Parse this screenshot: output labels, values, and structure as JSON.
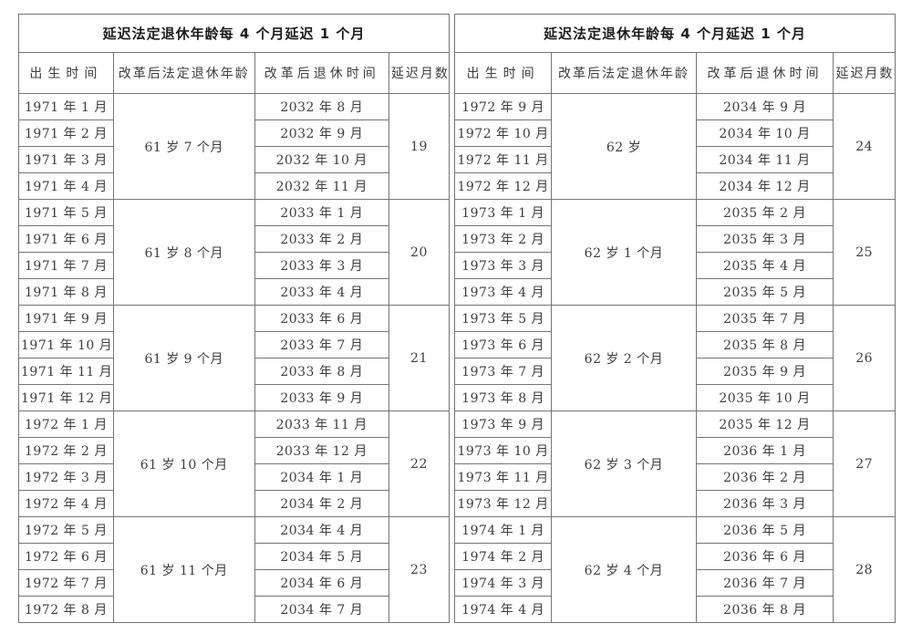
{
  "style": {
    "background": "#ffffff",
    "border_color": "#757575",
    "text_color": "#3d3d3d",
    "title_color": "#1c1c1c"
  },
  "tables": [
    {
      "title": "延迟法定退休年龄每 4 个月延迟 1 个月",
      "columns": [
        "出生时间",
        "改革后法定退休年龄",
        "改革后退休时间",
        "延迟月数"
      ],
      "groups": [
        {
          "age": "61 岁 7 个月",
          "delay": "19",
          "rows": [
            {
              "birth": "1971 年 1 月",
              "retire": "2032 年 8 月"
            },
            {
              "birth": "1971 年 2 月",
              "retire": "2032 年 9 月"
            },
            {
              "birth": "1971 年 3 月",
              "retire": "2032 年 10 月"
            },
            {
              "birth": "1971 年 4 月",
              "retire": "2032 年 11 月"
            }
          ]
        },
        {
          "age": "61 岁 8 个月",
          "delay": "20",
          "rows": [
            {
              "birth": "1971 年 5 月",
              "retire": "2033 年 1 月"
            },
            {
              "birth": "1971 年 6 月",
              "retire": "2033 年 2 月"
            },
            {
              "birth": "1971 年 7 月",
              "retire": "2033 年 3 月"
            },
            {
              "birth": "1971 年 8 月",
              "retire": "2033 年 4 月"
            }
          ]
        },
        {
          "age": "61 岁 9 个月",
          "delay": "21",
          "rows": [
            {
              "birth": "1971 年 9 月",
              "retire": "2033 年 6 月"
            },
            {
              "birth": "1971 年 10 月",
              "retire": "2033 年 7 月"
            },
            {
              "birth": "1971 年 11 月",
              "retire": "2033 年 8 月"
            },
            {
              "birth": "1971 年 12 月",
              "retire": "2033 年 9 月"
            }
          ]
        },
        {
          "age": "61 岁 10 个月",
          "delay": "22",
          "rows": [
            {
              "birth": "1972 年 1 月",
              "retire": "2033 年 11 月"
            },
            {
              "birth": "1972 年 2 月",
              "retire": "2033 年 12 月"
            },
            {
              "birth": "1972 年 3 月",
              "retire": "2034 年 1 月"
            },
            {
              "birth": "1972 年 4 月",
              "retire": "2034 年 2 月"
            }
          ]
        },
        {
          "age": "61 岁 11 个月",
          "delay": "23",
          "rows": [
            {
              "birth": "1972 年 5 月",
              "retire": "2034 年 4 月"
            },
            {
              "birth": "1972 年 6 月",
              "retire": "2034 年 5 月"
            },
            {
              "birth": "1972 年 7 月",
              "retire": "2034 年 6 月"
            },
            {
              "birth": "1972 年 8 月",
              "retire": "2034 年 7 月"
            }
          ]
        }
      ]
    },
    {
      "title": "延迟法定退休年龄每 4 个月延迟 1 个月",
      "columns": [
        "出生时间",
        "改革后法定退休年龄",
        "改革后退休时间",
        "延迟月数"
      ],
      "groups": [
        {
          "age": "62 岁",
          "delay": "24",
          "rows": [
            {
              "birth": "1972 年 9 月",
              "retire": "2034 年 9 月"
            },
            {
              "birth": "1972 年 10 月",
              "retire": "2034 年 10 月"
            },
            {
              "birth": "1972 年 11 月",
              "retire": "2034 年 11 月"
            },
            {
              "birth": "1972 年 12 月",
              "retire": "2034 年 12 月"
            }
          ]
        },
        {
          "age": "62 岁 1 个月",
          "delay": "25",
          "rows": [
            {
              "birth": "1973 年 1 月",
              "retire": "2035 年 2 月"
            },
            {
              "birth": "1973 年 2 月",
              "retire": "2035 年 3 月"
            },
            {
              "birth": "1973 年 3 月",
              "retire": "2035 年 4 月"
            },
            {
              "birth": "1973 年 4 月",
              "retire": "2035 年 5 月"
            }
          ]
        },
        {
          "age": "62 岁 2 个月",
          "delay": "26",
          "rows": [
            {
              "birth": "1973 年 5 月",
              "retire": "2035 年 7 月"
            },
            {
              "birth": "1973 年 6 月",
              "retire": "2035 年 8 月"
            },
            {
              "birth": "1973 年 7 月",
              "retire": "2035 年 9 月"
            },
            {
              "birth": "1973 年 8 月",
              "retire": "2035 年 10 月"
            }
          ]
        },
        {
          "age": "62 岁 3 个月",
          "delay": "27",
          "rows": [
            {
              "birth": "1973 年 9 月",
              "retire": "2035 年 12 月"
            },
            {
              "birth": "1973 年 10 月",
              "retire": "2036 年 1 月"
            },
            {
              "birth": "1973 年 11 月",
              "retire": "2036 年 2 月"
            },
            {
              "birth": "1973 年 12 月",
              "retire": "2036 年 3 月"
            }
          ]
        },
        {
          "age": "62 岁 4 个月",
          "delay": "28",
          "rows": [
            {
              "birth": "1974 年 1 月",
              "retire": "2036 年 5 月"
            },
            {
              "birth": "1974 年 2 月",
              "retire": "2036 年 6 月"
            },
            {
              "birth": "1974 年 3 月",
              "retire": "2036 年 7 月"
            },
            {
              "birth": "1974 年 4 月",
              "retire": "2036 年 8 月"
            }
          ]
        }
      ]
    }
  ]
}
